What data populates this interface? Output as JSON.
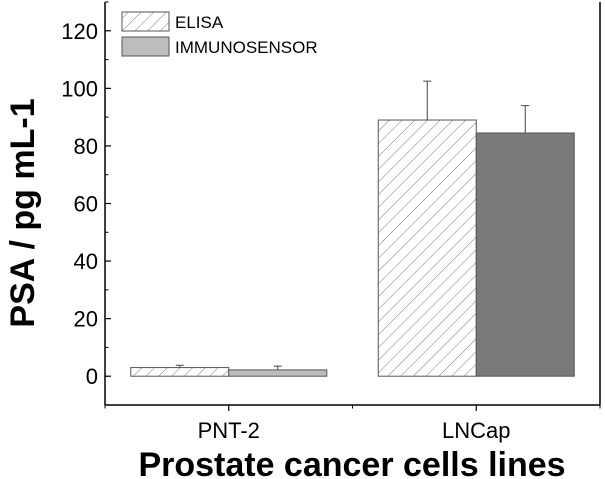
{
  "chart_data": {
    "type": "bar",
    "xlabel": "Prostate cancer cells lines",
    "ylabel": "PSA / pg mL-1",
    "ylim": [
      -10,
      130
    ],
    "yticks": [
      0,
      20,
      40,
      60,
      80,
      100,
      120
    ],
    "categories": [
      "PNT-2",
      "LNCap"
    ],
    "series": [
      {
        "name": "ELISA",
        "values": [
          3,
          89
        ],
        "errors": [
          0.8,
          13.5
        ],
        "fill": "hatch",
        "color": "#ffffff",
        "stroke": "#555555"
      },
      {
        "name": "IMMUNOSENSOR",
        "values": [
          2.2,
          84.5
        ],
        "errors": [
          1.3,
          9.5
        ],
        "fill": "solid",
        "colors": [
          "#bdbdbd",
          "#7a7a7a"
        ],
        "color": "#bdbdbd",
        "stroke": "#555555"
      }
    ],
    "legend_position": "top-left",
    "grid": false
  }
}
